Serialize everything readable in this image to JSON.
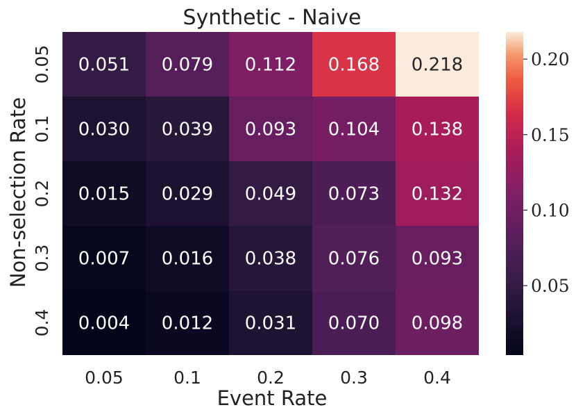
{
  "chart_data": {
    "type": "heatmap",
    "title": "Synthetic - Naive",
    "xlabel": "Event Rate",
    "ylabel": "Non-selection Rate",
    "x_categories": [
      "0.05",
      "0.1",
      "0.2",
      "0.3",
      "0.4"
    ],
    "y_categories": [
      "0.05",
      "0.1",
      "0.2",
      "0.3",
      "0.4"
    ],
    "values": [
      [
        0.051,
        0.079,
        0.112,
        0.168,
        0.218
      ],
      [
        0.03,
        0.039,
        0.093,
        0.104,
        0.138
      ],
      [
        0.015,
        0.029,
        0.049,
        0.073,
        0.132
      ],
      [
        0.007,
        0.016,
        0.038,
        0.076,
        0.093
      ],
      [
        0.004,
        0.012,
        0.031,
        0.07,
        0.098
      ]
    ],
    "labels": [
      [
        "0.051",
        "0.079",
        "0.112",
        "0.168",
        "0.218"
      ],
      [
        "0.030",
        "0.039",
        "0.093",
        "0.104",
        "0.138"
      ],
      [
        "0.015",
        "0.029",
        "0.049",
        "0.073",
        "0.132"
      ],
      [
        "0.007",
        "0.016",
        "0.038",
        "0.076",
        "0.093"
      ],
      [
        "0.004",
        "0.012",
        "0.031",
        "0.070",
        "0.098"
      ]
    ],
    "colormap": "rocket",
    "colorbar": {
      "range": [
        0.004,
        0.218
      ],
      "ticks": [
        0.05,
        0.1,
        0.15,
        0.2
      ],
      "tick_labels": [
        "0.05",
        "0.10",
        "0.15",
        "0.20"
      ]
    }
  }
}
